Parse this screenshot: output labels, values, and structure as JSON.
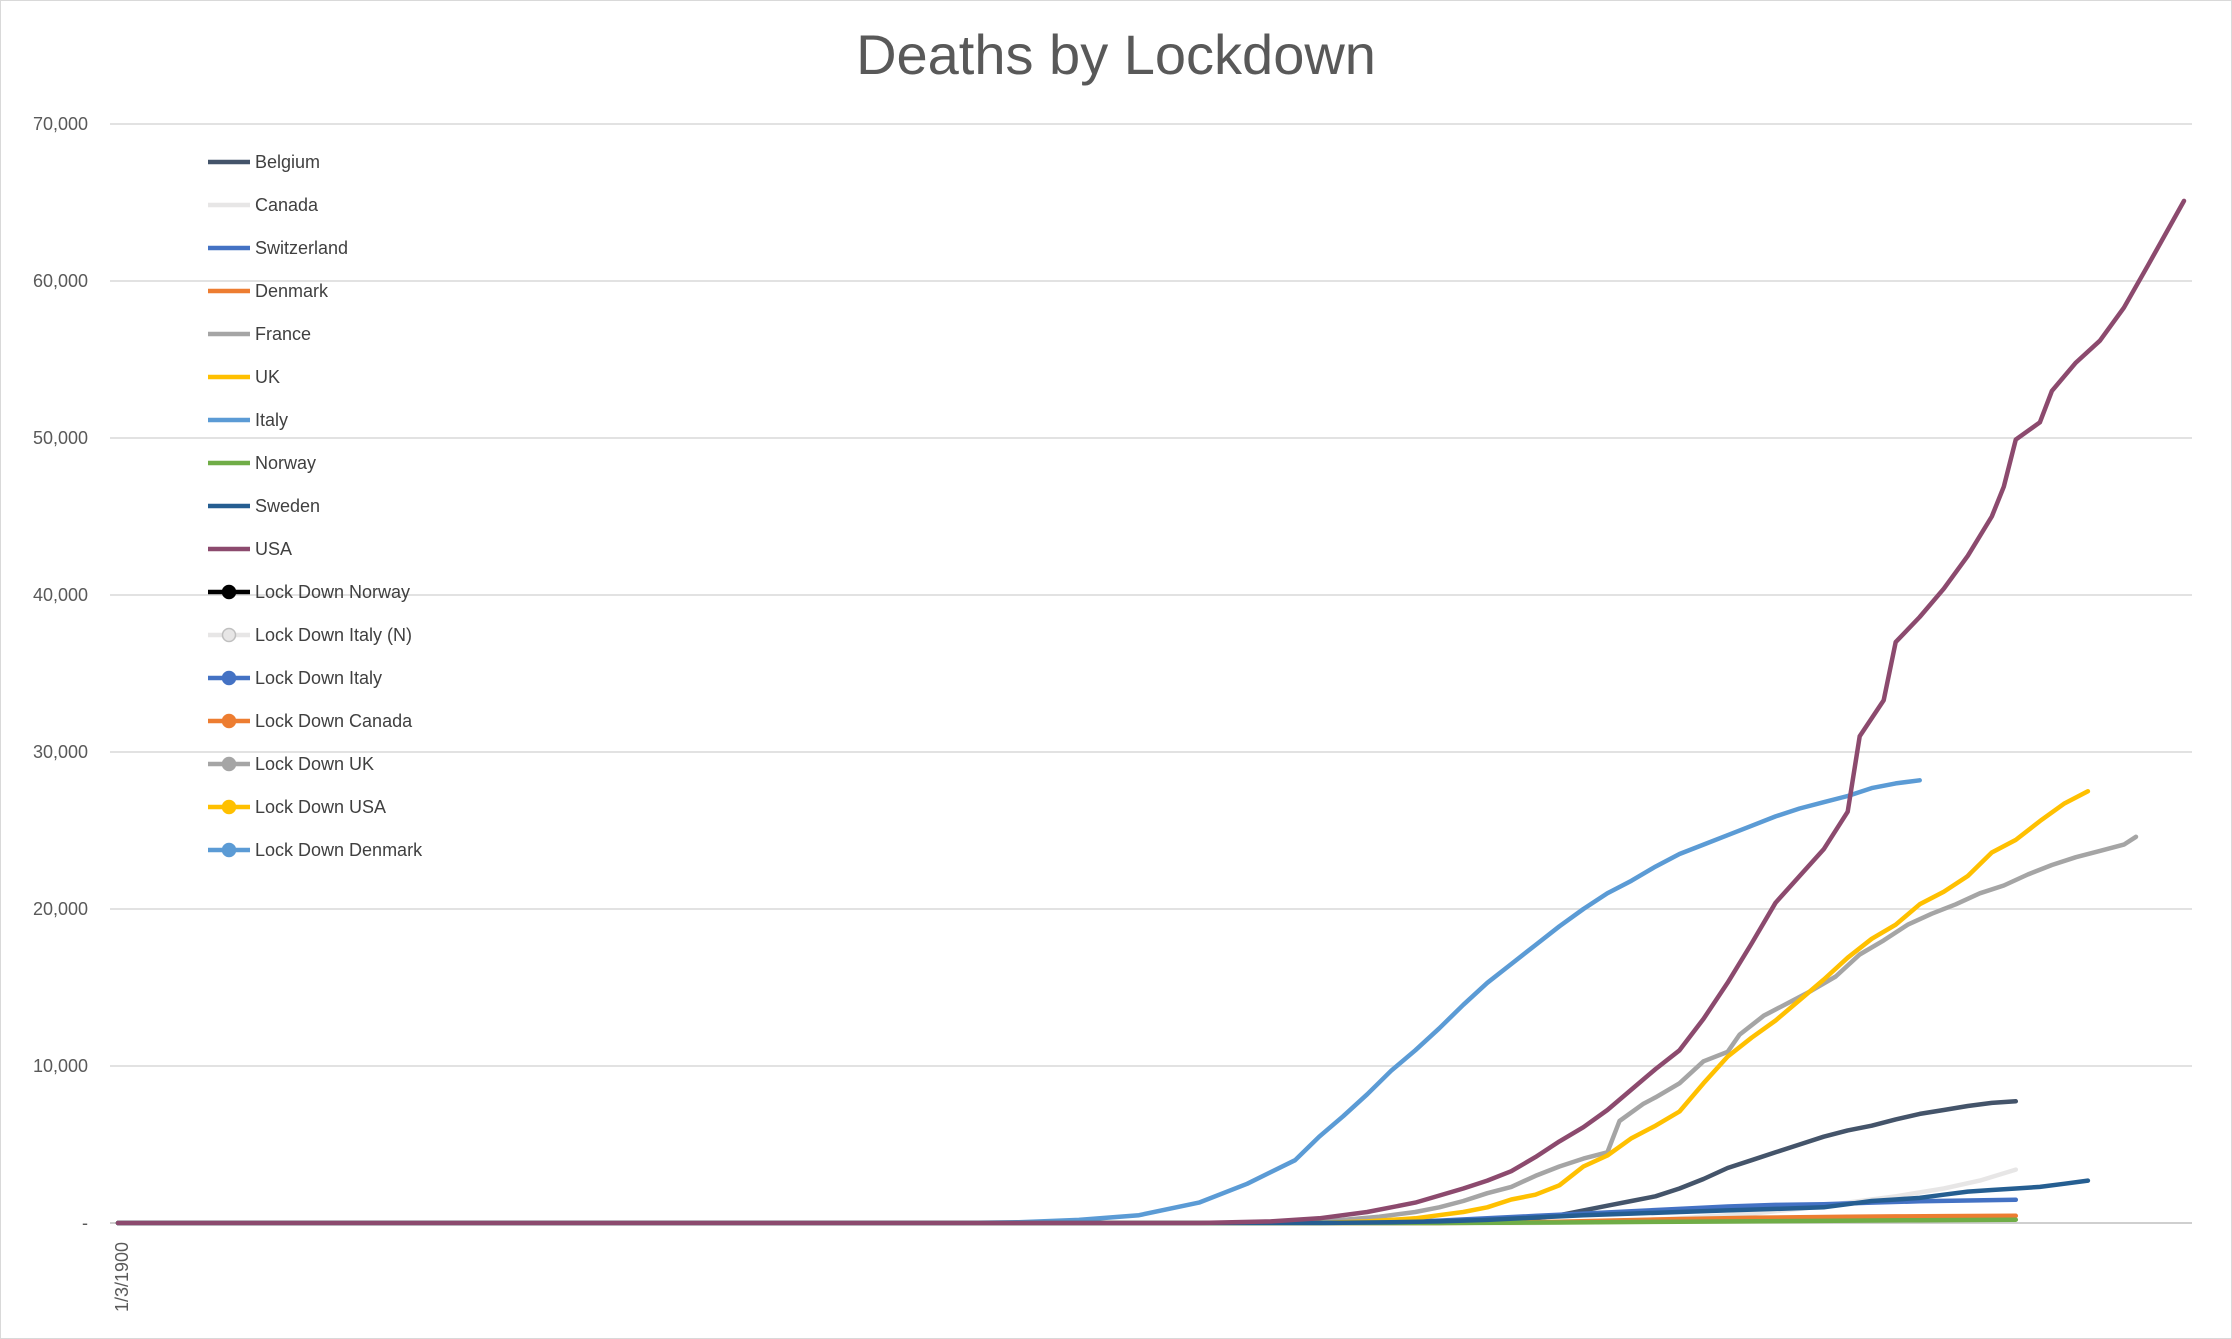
{
  "chart_data": {
    "type": "line",
    "title": "Deaths by Lockdown",
    "xlabel": "",
    "ylabel": "",
    "ylim": [
      0,
      70000
    ],
    "y_ticks": [
      "-",
      "10,000",
      "20,000",
      "30,000",
      "40,000",
      "50,000",
      "60,000",
      "70,000"
    ],
    "x_tick_labels": [
      "1/3/1900"
    ],
    "grid": true,
    "legend_position": "top-left",
    "series": [
      {
        "name": "Belgium",
        "color": "#44546a",
        "marker": false,
        "points": [
          [
            0,
            0
          ],
          [
            110,
            0
          ],
          [
            115,
            150
          ],
          [
            118,
            300
          ],
          [
            120,
            500
          ],
          [
            122,
            800
          ],
          [
            124,
            1100
          ],
          [
            126,
            1400
          ],
          [
            128,
            1700
          ],
          [
            130,
            2200
          ],
          [
            132,
            2800
          ],
          [
            134,
            3500
          ],
          [
            136,
            4000
          ],
          [
            138,
            4500
          ],
          [
            140,
            5000
          ],
          [
            142,
            5500
          ],
          [
            144,
            5900
          ],
          [
            146,
            6200
          ],
          [
            148,
            6600
          ],
          [
            150,
            6950
          ],
          [
            152,
            7200
          ],
          [
            154,
            7450
          ],
          [
            156,
            7650
          ],
          [
            158,
            7750
          ]
        ]
      },
      {
        "name": "Canada",
        "color": "#e7e6e6",
        "marker": false,
        "points": [
          [
            0,
            0
          ],
          [
            118,
            0
          ],
          [
            124,
            100
          ],
          [
            128,
            200
          ],
          [
            132,
            400
          ],
          [
            136,
            600
          ],
          [
            140,
            900
          ],
          [
            144,
            1300
          ],
          [
            148,
            1700
          ],
          [
            152,
            2200
          ],
          [
            155,
            2700
          ],
          [
            158,
            3400
          ]
        ]
      },
      {
        "name": "Switzerland",
        "color": "#4472c4",
        "marker": false,
        "points": [
          [
            0,
            0
          ],
          [
            100,
            0
          ],
          [
            106,
            50
          ],
          [
            110,
            150
          ],
          [
            114,
            300
          ],
          [
            118,
            450
          ],
          [
            122,
            600
          ],
          [
            126,
            750
          ],
          [
            130,
            900
          ],
          [
            134,
            1050
          ],
          [
            138,
            1150
          ],
          [
            142,
            1200
          ],
          [
            146,
            1300
          ],
          [
            150,
            1380
          ],
          [
            154,
            1430
          ],
          [
            158,
            1480
          ]
        ]
      },
      {
        "name": "Denmark",
        "color": "#ed7d31",
        "marker": false,
        "points": [
          [
            0,
            0
          ],
          [
            110,
            0
          ],
          [
            116,
            30
          ],
          [
            120,
            80
          ],
          [
            124,
            150
          ],
          [
            128,
            220
          ],
          [
            132,
            280
          ],
          [
            136,
            330
          ],
          [
            140,
            370
          ],
          [
            144,
            400
          ],
          [
            148,
            420
          ],
          [
            152,
            440
          ],
          [
            158,
            460
          ]
        ]
      },
      {
        "name": "France",
        "color": "#a5a5a5",
        "marker": false,
        "points": [
          [
            0,
            0
          ],
          [
            95,
            0
          ],
          [
            98,
            100
          ],
          [
            102,
            200
          ],
          [
            105,
            400
          ],
          [
            108,
            700
          ],
          [
            110,
            1000
          ],
          [
            112,
            1400
          ],
          [
            114,
            1900
          ],
          [
            116,
            2300
          ],
          [
            118,
            3000
          ],
          [
            120,
            3600
          ],
          [
            122,
            4100
          ],
          [
            124,
            4500
          ],
          [
            125,
            6500
          ],
          [
            127,
            7600
          ],
          [
            128,
            8000
          ],
          [
            130,
            8900
          ],
          [
            132,
            10300
          ],
          [
            134,
            10900
          ],
          [
            135,
            12000
          ],
          [
            137,
            13200
          ],
          [
            139,
            14000
          ],
          [
            141,
            14800
          ],
          [
            143,
            15700
          ],
          [
            145,
            17100
          ],
          [
            147,
            18000
          ],
          [
            149,
            19000
          ],
          [
            151,
            19700
          ],
          [
            153,
            20300
          ],
          [
            155,
            21000
          ],
          [
            157,
            21500
          ],
          [
            159,
            22200
          ],
          [
            161,
            22800
          ],
          [
            163,
            23300
          ],
          [
            165,
            23700
          ],
          [
            167,
            24100
          ],
          [
            168,
            24600
          ]
        ]
      },
      {
        "name": "UK",
        "color": "#ffc000",
        "marker": false,
        "points": [
          [
            0,
            0
          ],
          [
            100,
            0
          ],
          [
            104,
            100
          ],
          [
            108,
            300
          ],
          [
            112,
            700
          ],
          [
            114,
            1000
          ],
          [
            116,
            1500
          ],
          [
            118,
            1800
          ],
          [
            120,
            2400
          ],
          [
            122,
            3600
          ],
          [
            124,
            4300
          ],
          [
            126,
            5400
          ],
          [
            128,
            6200
          ],
          [
            130,
            7100
          ],
          [
            132,
            8900
          ],
          [
            134,
            10600
          ],
          [
            136,
            11800
          ],
          [
            138,
            12900
          ],
          [
            140,
            14200
          ],
          [
            142,
            15500
          ],
          [
            144,
            16900
          ],
          [
            146,
            18100
          ],
          [
            148,
            19000
          ],
          [
            150,
            20300
          ],
          [
            152,
            21100
          ],
          [
            154,
            22100
          ],
          [
            156,
            23600
          ],
          [
            158,
            24400
          ],
          [
            160,
            25600
          ],
          [
            162,
            26700
          ],
          [
            164,
            27500
          ]
        ]
      },
      {
        "name": "Italy",
        "color": "#5b9bd5",
        "marker": false,
        "points": [
          [
            0,
            0
          ],
          [
            70,
            0
          ],
          [
            75,
            50
          ],
          [
            80,
            200
          ],
          [
            85,
            500
          ],
          [
            90,
            1300
          ],
          [
            94,
            2500
          ],
          [
            98,
            4000
          ],
          [
            100,
            5500
          ],
          [
            102,
            6800
          ],
          [
            104,
            8200
          ],
          [
            106,
            9700
          ],
          [
            108,
            11000
          ],
          [
            110,
            12400
          ],
          [
            112,
            13900
          ],
          [
            114,
            15300
          ],
          [
            116,
            16500
          ],
          [
            118,
            17700
          ],
          [
            120,
            18900
          ],
          [
            122,
            20000
          ],
          [
            124,
            21000
          ],
          [
            126,
            21800
          ],
          [
            128,
            22700
          ],
          [
            130,
            23500
          ],
          [
            132,
            24100
          ],
          [
            134,
            24700
          ],
          [
            136,
            25300
          ],
          [
            138,
            25900
          ],
          [
            140,
            26400
          ],
          [
            142,
            26800
          ],
          [
            144,
            27200
          ],
          [
            146,
            27700
          ],
          [
            148,
            28000
          ],
          [
            150,
            28200
          ]
        ]
      },
      {
        "name": "Norway",
        "color": "#70ad47",
        "marker": false,
        "points": [
          [
            0,
            0
          ],
          [
            110,
            0
          ],
          [
            120,
            30
          ],
          [
            130,
            80
          ],
          [
            140,
            130
          ],
          [
            150,
            180
          ],
          [
            158,
            210
          ]
        ]
      },
      {
        "name": "Sweden",
        "color": "#255e91",
        "marker": false,
        "points": [
          [
            0,
            0
          ],
          [
            100,
            0
          ],
          [
            106,
            50
          ],
          [
            110,
            100
          ],
          [
            114,
            200
          ],
          [
            118,
            350
          ],
          [
            122,
            500
          ],
          [
            126,
            600
          ],
          [
            130,
            700
          ],
          [
            134,
            800
          ],
          [
            138,
            900
          ],
          [
            142,
            1000
          ],
          [
            144,
            1200
          ],
          [
            146,
            1400
          ],
          [
            148,
            1500
          ],
          [
            150,
            1600
          ],
          [
            152,
            1800
          ],
          [
            154,
            2000
          ],
          [
            156,
            2100
          ],
          [
            158,
            2200
          ],
          [
            160,
            2300
          ],
          [
            162,
            2500
          ],
          [
            164,
            2700
          ]
        ]
      },
      {
        "name": "USA",
        "color": "#8c4a6e",
        "marker": false,
        "points": [
          [
            0,
            0
          ],
          [
            90,
            0
          ],
          [
            96,
            100
          ],
          [
            100,
            300
          ],
          [
            104,
            700
          ],
          [
            108,
            1300
          ],
          [
            112,
            2200
          ],
          [
            114,
            2700
          ],
          [
            116,
            3300
          ],
          [
            118,
            4200
          ],
          [
            120,
            5200
          ],
          [
            122,
            6100
          ],
          [
            124,
            7200
          ],
          [
            126,
            8500
          ],
          [
            128,
            9800
          ],
          [
            130,
            11000
          ],
          [
            132,
            13000
          ],
          [
            134,
            15300
          ],
          [
            136,
            17800
          ],
          [
            138,
            20400
          ],
          [
            140,
            22100
          ],
          [
            142,
            23800
          ],
          [
            144,
            26200
          ],
          [
            145,
            31000
          ],
          [
            147,
            33300
          ],
          [
            148,
            37000
          ],
          [
            150,
            38600
          ],
          [
            152,
            40400
          ],
          [
            154,
            42500
          ],
          [
            156,
            45000
          ],
          [
            157,
            46900
          ],
          [
            158,
            49900
          ],
          [
            160,
            51000
          ],
          [
            161,
            53000
          ],
          [
            163,
            54800
          ],
          [
            165,
            56200
          ],
          [
            167,
            58300
          ],
          [
            169,
            61000
          ],
          [
            172,
            65100
          ]
        ]
      }
    ],
    "legend": [
      {
        "label": "Belgium",
        "color": "#44546a",
        "marker": false
      },
      {
        "label": "Canada",
        "color": "#e7e6e6",
        "marker": false
      },
      {
        "label": "Switzerland",
        "color": "#4472c4",
        "marker": false
      },
      {
        "label": "Denmark",
        "color": "#ed7d31",
        "marker": false
      },
      {
        "label": "France",
        "color": "#a5a5a5",
        "marker": false
      },
      {
        "label": "UK",
        "color": "#ffc000",
        "marker": false
      },
      {
        "label": "Italy",
        "color": "#5b9bd5",
        "marker": false
      },
      {
        "label": "Norway",
        "color": "#70ad47",
        "marker": false
      },
      {
        "label": "Sweden",
        "color": "#255e91",
        "marker": false
      },
      {
        "label": "USA",
        "color": "#8c4a6e",
        "marker": false
      },
      {
        "label": "Lock Down Norway",
        "color": "#000000",
        "marker": true
      },
      {
        "label": "Lock Down Italy (N)",
        "color": "#e7e6e6",
        "marker": true
      },
      {
        "label": "Lock Down Italy",
        "color": "#4472c4",
        "marker": true
      },
      {
        "label": "Lock Down Canada",
        "color": "#ed7d31",
        "marker": true
      },
      {
        "label": "Lock Down UK",
        "color": "#a5a5a5",
        "marker": true
      },
      {
        "label": "Lock Down USA",
        "color": "#ffc000",
        "marker": true
      },
      {
        "label": "Lock Down Denmark",
        "color": "#5b9bd5",
        "marker": true
      }
    ]
  }
}
